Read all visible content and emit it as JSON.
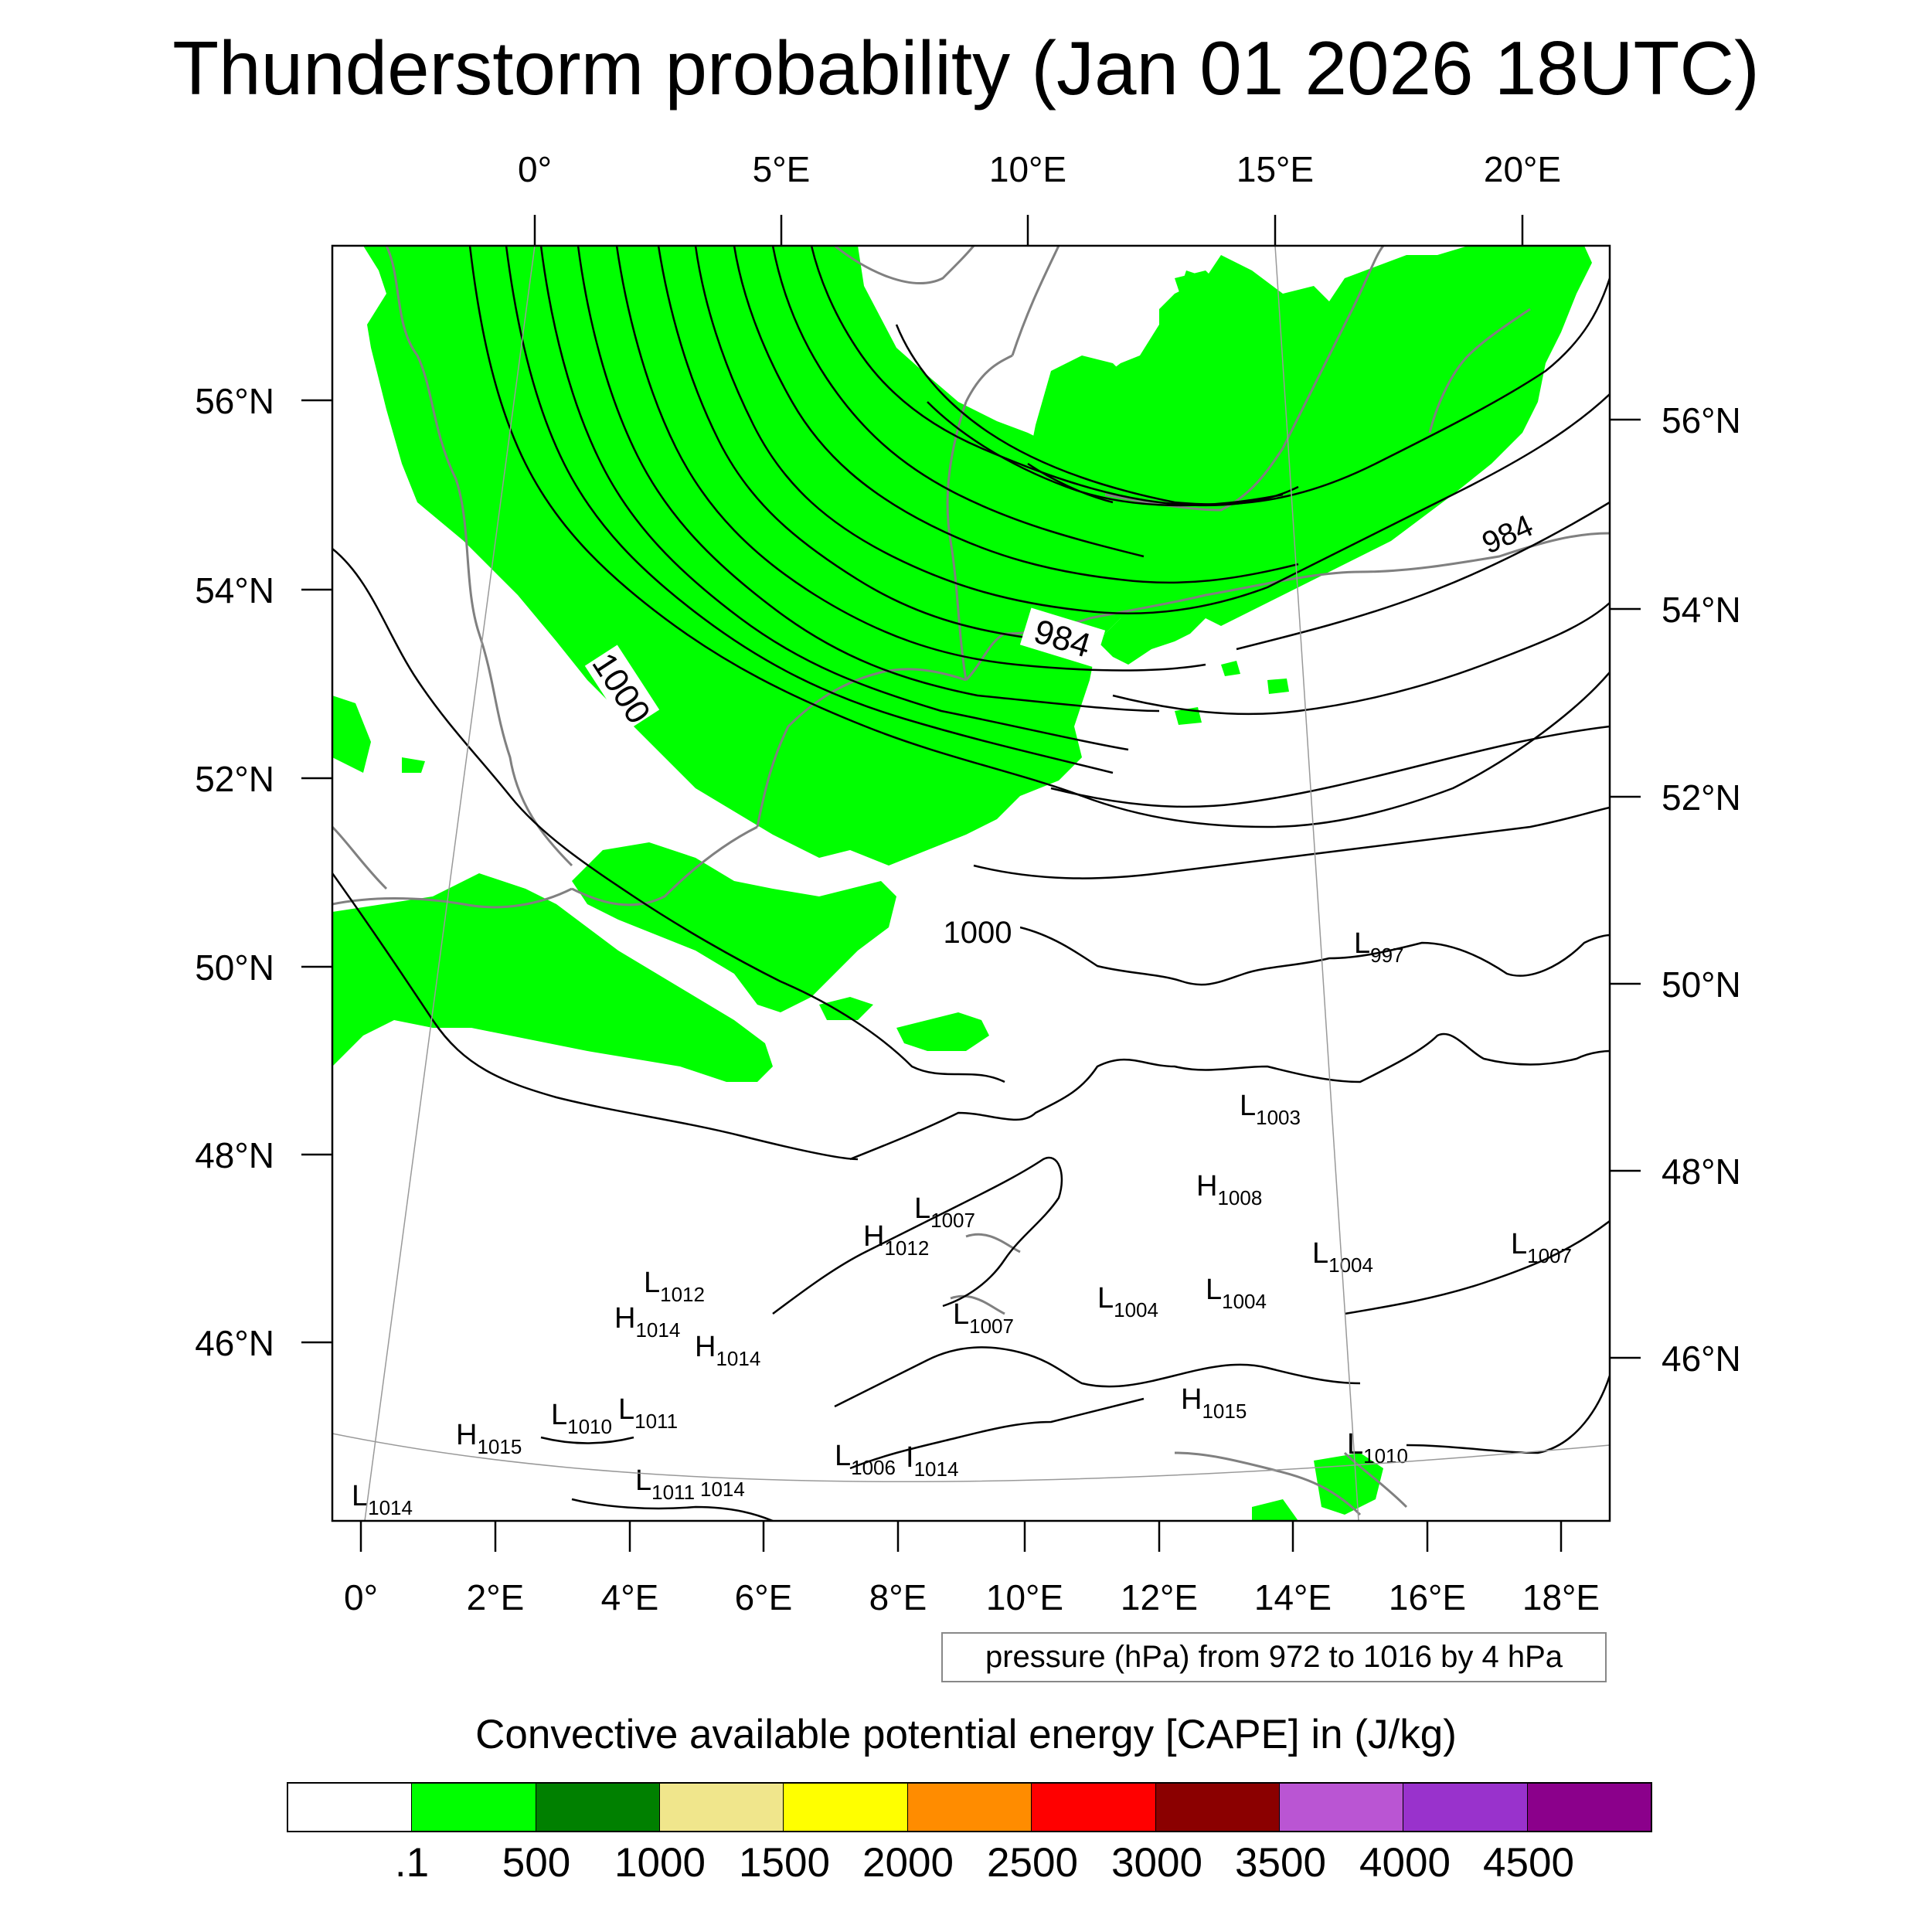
{
  "title": "Thunderstorm probability (Jan 01 2026 18UTC)",
  "top_lon_labels": [
    "0°",
    "5°E",
    "10°E",
    "15°E",
    "20°E"
  ],
  "bottom_lon_labels": [
    "0°",
    "2°E",
    "4°E",
    "6°E",
    "8°E",
    "10°E",
    "12°E",
    "14°E",
    "16°E",
    "18°E"
  ],
  "left_lat_labels": [
    "56°N",
    "54°N",
    "52°N",
    "50°N",
    "48°N",
    "46°N"
  ],
  "right_lat_labels": [
    "56°N",
    "54°N",
    "52°N",
    "50°N",
    "48°N",
    "46°N"
  ],
  "isobar_labels": [
    "1000",
    "984",
    "1000",
    "984"
  ],
  "pressure_note": "pressure (hPa) from 972 to 1016 by 4 hPa",
  "pressure_centers": [
    {
      "type": "L",
      "value": "997"
    },
    {
      "type": "L",
      "value": "1003"
    },
    {
      "type": "H",
      "value": "1008"
    },
    {
      "type": "L",
      "value": "1007"
    },
    {
      "type": "H",
      "value": "1012"
    },
    {
      "type": "L",
      "value": "1012"
    },
    {
      "type": "H",
      "value": "1014"
    },
    {
      "type": "H",
      "value": "1014"
    },
    {
      "type": "L",
      "value": "1007"
    },
    {
      "type": "L",
      "value": "1004"
    },
    {
      "type": "L",
      "value": "1004"
    },
    {
      "type": "L",
      "value": "1004"
    },
    {
      "type": "L",
      "value": "1007"
    },
    {
      "type": "H",
      "value": "1015"
    },
    {
      "type": "L",
      "value": "1010"
    },
    {
      "type": "L",
      "value": "1011"
    },
    {
      "type": "H",
      "value": "1015"
    },
    {
      "type": "L",
      "value": "1010"
    },
    {
      "type": "L",
      "value": "1006"
    },
    {
      "type": "I",
      "value": "1014"
    },
    {
      "type": "L",
      "value": "1011"
    },
    {
      "type": "",
      "value": "1014"
    },
    {
      "type": "L",
      "value": "1014"
    }
  ],
  "colorbar": {
    "title": "Convective available potential energy [CAPE] in (J/kg)",
    "labels": [
      ".1",
      "500",
      "1000",
      "1500",
      "2000",
      "2500",
      "3000",
      "3500",
      "4000",
      "4500"
    ],
    "colors": [
      "#ffffff",
      "#00ff00",
      "#008000",
      "#f0e68c",
      "#ffff00",
      "#ff8c00",
      "#ff0000",
      "#8b0000",
      "#ba55d3",
      "#9932cc",
      "#8b008b"
    ]
  },
  "cape_fill_color": "#00ff00",
  "coastline_color": "#808080"
}
